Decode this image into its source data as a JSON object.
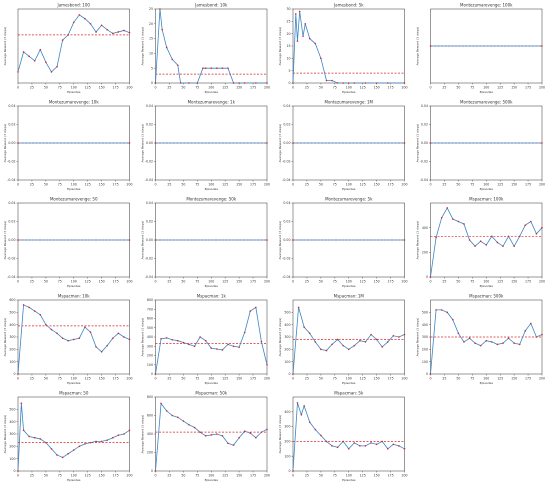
{
  "style": {
    "line_color": "#3a86c8",
    "mean_color": "#d62728",
    "marker_color": "#d62728",
    "axis_color": "#333333"
  },
  "chart_data": [
    {
      "type": "line",
      "title": "Jamesbond: 100",
      "xlabel": "Episodes",
      "ylabel": "Average Reward (3 steps)",
      "x_ticks": [
        0,
        25,
        50,
        75,
        100,
        125,
        150,
        175,
        200
      ],
      "y_ticks": [],
      "xlim": [
        0,
        200
      ],
      "ylim": [
        0,
        10
      ],
      "mean": 6.5,
      "series": [
        {
          "x": [
            0,
            10,
            20,
            30,
            40,
            50,
            60,
            70,
            80,
            90,
            100,
            110,
            120,
            130,
            140,
            150,
            160,
            170,
            180,
            190,
            200
          ],
          "values": [
            1.5,
            4.2,
            3.6,
            3.0,
            4.5,
            2.8,
            1.5,
            2.2,
            5.8,
            6.5,
            8.2,
            9.2,
            8.7,
            8.0,
            6.9,
            7.8,
            7.2,
            6.7,
            6.9,
            7.1,
            6.8
          ]
        }
      ]
    },
    {
      "type": "line",
      "title": "Jamesbond: 10k",
      "xlabel": "Episodes",
      "ylabel": "Average Reward (3 steps)",
      "x_ticks": [
        0,
        25,
        50,
        75,
        100,
        125,
        150,
        175,
        200
      ],
      "y_ticks": [
        0,
        5,
        10,
        15,
        20,
        25
      ],
      "xlim": [
        0,
        200
      ],
      "ylim": [
        0,
        25
      ],
      "mean": 3.0,
      "series": [
        {
          "x": [
            0,
            8,
            12,
            20,
            30,
            40,
            45,
            60,
            75,
            85,
            90,
            100,
            110,
            120,
            130,
            140,
            150,
            160,
            180,
            200
          ],
          "values": [
            0,
            25,
            18,
            12,
            8,
            6,
            0,
            0,
            0,
            5,
            5,
            5,
            5,
            5,
            5,
            0,
            0,
            0,
            0,
            0
          ]
        }
      ]
    },
    {
      "type": "line",
      "title": "Jamesbond: 5k",
      "xlabel": "Episodes",
      "ylabel": "Average Reward (3 steps)",
      "x_ticks": [
        0,
        25,
        50,
        75,
        100,
        125,
        150,
        175,
        200
      ],
      "y_ticks": [
        0,
        5,
        10,
        15,
        20,
        25,
        30
      ],
      "xlim": [
        0,
        200
      ],
      "ylim": [
        0,
        30
      ],
      "mean": 4.0,
      "series": [
        {
          "x": [
            0,
            5,
            8,
            12,
            18,
            22,
            30,
            40,
            50,
            60,
            70,
            80,
            90,
            100,
            110,
            130,
            150,
            170,
            200
          ],
          "values": [
            0,
            28,
            17,
            29,
            19,
            24,
            18,
            16,
            10,
            1,
            1,
            0,
            0,
            0,
            0,
            0,
            0,
            0,
            0
          ]
        }
      ]
    },
    {
      "type": "line",
      "title": "Montezumarevenge: 100k",
      "xlabel": "Episodes",
      "ylabel": "Average Reward (3 steps)",
      "x_ticks": [
        0,
        25,
        50,
        75,
        100,
        125,
        150,
        175,
        200
      ],
      "y_ticks": [],
      "xlim": [
        0,
        200
      ],
      "ylim": [
        -0.04,
        0.04
      ],
      "mean": 0.0,
      "series": [
        {
          "x": [
            0,
            200
          ],
          "values": [
            0,
            0
          ]
        }
      ]
    },
    {
      "type": "line",
      "title": "Montezumarevenge: 10k",
      "xlabel": "Episodes",
      "ylabel": "Average Reward (3 steps)",
      "x_ticks": [
        0,
        25,
        50,
        75,
        100,
        125,
        150,
        175,
        200
      ],
      "y_ticks": [
        "-0.04",
        "-0.02",
        "0.00",
        "0.02",
        "0.04"
      ],
      "xlim": [
        0,
        200
      ],
      "ylim": [
        -0.04,
        0.04
      ],
      "mean": 0.0,
      "series": [
        {
          "x": [
            0,
            200
          ],
          "values": [
            0,
            0
          ]
        }
      ]
    },
    {
      "type": "line",
      "title": "Montezumarevenge: 1k",
      "xlabel": "Episodes",
      "ylabel": "Average Reward (3 steps)",
      "x_ticks": [
        0,
        25,
        50,
        75,
        100,
        125,
        150,
        175,
        200
      ],
      "y_ticks": [
        "-0.04",
        "-0.02",
        "0.00",
        "0.02",
        "0.04"
      ],
      "xlim": [
        0,
        200
      ],
      "ylim": [
        -0.04,
        0.04
      ],
      "mean": 0.0,
      "series": [
        {
          "x": [
            0,
            200
          ],
          "values": [
            0,
            0
          ]
        }
      ]
    },
    {
      "type": "line",
      "title": "Montezumarevenge: 1M",
      "xlabel": "Episodes",
      "ylabel": "Average Reward (3 steps)",
      "x_ticks": [
        0,
        25,
        50,
        75,
        100,
        125,
        150,
        175,
        200
      ],
      "y_ticks": [
        "-0.04",
        "-0.02",
        "0.00",
        "0.02",
        "0.04"
      ],
      "xlim": [
        0,
        200
      ],
      "ylim": [
        -0.04,
        0.04
      ],
      "mean": 0.0,
      "series": [
        {
          "x": [
            0,
            200
          ],
          "values": [
            0,
            0
          ]
        }
      ]
    },
    {
      "type": "line",
      "title": "Montezumarevenge: 500k",
      "xlabel": "Episodes",
      "ylabel": "Average Reward (3 steps)",
      "x_ticks": [
        0,
        25,
        50,
        75,
        100,
        125,
        150,
        175,
        200
      ],
      "y_ticks": [
        "-0.04",
        "-0.02",
        "0.00",
        "0.02",
        "0.04"
      ],
      "xlim": [
        0,
        200
      ],
      "ylim": [
        -0.04,
        0.04
      ],
      "mean": 0.0,
      "series": [
        {
          "x": [
            0,
            200
          ],
          "values": [
            0,
            0
          ]
        }
      ]
    },
    {
      "type": "line",
      "title": "Montezumarevenge: 50",
      "xlabel": "Episodes",
      "ylabel": "Average Reward (3 steps)",
      "x_ticks": [
        0,
        25,
        50,
        75,
        100,
        125,
        150,
        175,
        200
      ],
      "y_ticks": [
        "-0.04",
        "-0.02",
        "0.00",
        "0.02",
        "0.04"
      ],
      "xlim": [
        0,
        200
      ],
      "ylim": [
        -0.04,
        0.04
      ],
      "mean": 0.0,
      "series": [
        {
          "x": [
            0,
            200
          ],
          "values": [
            0,
            0
          ]
        }
      ]
    },
    {
      "type": "line",
      "title": "Montezumarevenge: 50k",
      "xlabel": "Episodes",
      "ylabel": "Average Reward (3 steps)",
      "x_ticks": [
        0,
        25,
        50,
        75,
        100,
        125,
        150,
        175,
        200
      ],
      "y_ticks": [
        "-0.04",
        "-0.02",
        "0.00",
        "0.02",
        "0.04"
      ],
      "xlim": [
        0,
        200
      ],
      "ylim": [
        -0.04,
        0.04
      ],
      "mean": 0.0,
      "series": [
        {
          "x": [
            0,
            200
          ],
          "values": [
            0,
            0
          ]
        }
      ]
    },
    {
      "type": "line",
      "title": "Montezumarevenge: 5k",
      "xlabel": "Episodes",
      "ylabel": "Average Reward (3 steps)",
      "x_ticks": [
        0,
        25,
        50,
        75,
        100,
        125,
        150,
        175,
        200
      ],
      "y_ticks": [
        "-0.04",
        "-0.02",
        "0.00",
        "0.02",
        "0.04"
      ],
      "xlim": [
        0,
        200
      ],
      "ylim": [
        -0.04,
        0.04
      ],
      "mean": 0.0,
      "series": [
        {
          "x": [
            0,
            200
          ],
          "values": [
            0,
            0
          ]
        }
      ]
    },
    {
      "type": "line",
      "title": "Mspacman: 100k",
      "xlabel": "Episodes",
      "ylabel": "Average Reward (3 steps)",
      "x_ticks": [
        0,
        25,
        50,
        75,
        100,
        125,
        150,
        175,
        200
      ],
      "y_ticks": [
        0,
        200,
        400
      ],
      "xlim": [
        0,
        200
      ],
      "ylim": [
        0,
        600
      ],
      "mean": 330,
      "series": [
        {
          "x": [
            0,
            10,
            20,
            30,
            40,
            50,
            60,
            70,
            80,
            90,
            100,
            110,
            120,
            130,
            140,
            150,
            160,
            170,
            180,
            190,
            200
          ],
          "values": [
            0,
            320,
            480,
            560,
            470,
            450,
            430,
            300,
            250,
            290,
            260,
            330,
            280,
            250,
            330,
            250,
            330,
            420,
            450,
            350,
            400
          ]
        }
      ]
    },
    {
      "type": "line",
      "title": "Mspacman: 10k",
      "xlabel": "Episodes",
      "ylabel": "Average Reward (3 steps)",
      "x_ticks": [
        0,
        25,
        50,
        75,
        100,
        125,
        150,
        175,
        200
      ],
      "y_ticks": [
        0,
        100,
        200,
        300,
        400,
        500,
        600
      ],
      "xlim": [
        0,
        200
      ],
      "ylim": [
        0,
        600
      ],
      "mean": 390,
      "series": [
        {
          "x": [
            0,
            10,
            20,
            30,
            40,
            50,
            60,
            70,
            80,
            90,
            100,
            110,
            120,
            130,
            140,
            150,
            160,
            170,
            180,
            190,
            200
          ],
          "values": [
            0,
            560,
            540,
            510,
            480,
            400,
            360,
            330,
            290,
            270,
            280,
            290,
            380,
            340,
            220,
            180,
            230,
            290,
            330,
            300,
            280
          ]
        }
      ]
    },
    {
      "type": "line",
      "title": "Mspacman: 1k",
      "xlabel": "Episodes",
      "ylabel": "Average Reward (3 steps)",
      "x_ticks": [
        0,
        25,
        50,
        75,
        100,
        125,
        150,
        175,
        200
      ],
      "y_ticks": [
        0,
        100,
        200,
        300,
        400,
        500,
        600,
        700,
        800
      ],
      "xlim": [
        0,
        200
      ],
      "ylim": [
        0,
        800
      ],
      "mean": 330,
      "series": [
        {
          "x": [
            0,
            10,
            20,
            30,
            40,
            50,
            60,
            70,
            80,
            90,
            100,
            110,
            120,
            130,
            140,
            150,
            160,
            170,
            180,
            190,
            200
          ],
          "values": [
            0,
            380,
            390,
            370,
            360,
            340,
            320,
            300,
            400,
            360,
            280,
            270,
            260,
            320,
            300,
            290,
            450,
            680,
            720,
            350,
            100
          ]
        }
      ]
    },
    {
      "type": "line",
      "title": "Mspacman: 1M",
      "xlabel": "Episodes",
      "ylabel": "Average Reward (3 steps)",
      "x_ticks": [
        0,
        25,
        50,
        75,
        100,
        125,
        150,
        175,
        200
      ],
      "y_ticks": [
        0,
        100,
        200,
        300,
        400,
        500
      ],
      "xlim": [
        0,
        200
      ],
      "ylim": [
        0,
        600
      ],
      "mean": 280,
      "series": [
        {
          "x": [
            0,
            10,
            20,
            30,
            40,
            50,
            60,
            70,
            80,
            90,
            100,
            110,
            120,
            130,
            140,
            150,
            160,
            170,
            180,
            190,
            200
          ],
          "values": [
            0,
            540,
            380,
            330,
            260,
            200,
            190,
            240,
            280,
            230,
            200,
            230,
            270,
            260,
            320,
            280,
            220,
            260,
            310,
            300,
            320
          ]
        }
      ]
    },
    {
      "type": "line",
      "title": "Mspacman: 500k",
      "xlabel": "Episodes",
      "ylabel": "Average Reward (3 steps)",
      "x_ticks": [
        0,
        25,
        50,
        75,
        100,
        125,
        150,
        175,
        200
      ],
      "y_ticks": [
        0,
        100,
        200,
        300,
        400,
        500
      ],
      "xlim": [
        0,
        200
      ],
      "ylim": [
        0,
        600
      ],
      "mean": 300,
      "series": [
        {
          "x": [
            0,
            10,
            20,
            30,
            40,
            50,
            60,
            70,
            80,
            90,
            100,
            110,
            120,
            130,
            140,
            150,
            160,
            170,
            180,
            190,
            200
          ],
          "values": [
            0,
            520,
            520,
            500,
            440,
            330,
            260,
            290,
            250,
            230,
            270,
            260,
            240,
            250,
            290,
            250,
            240,
            350,
            410,
            300,
            320
          ]
        }
      ]
    },
    {
      "type": "line",
      "title": "Mspacman: 50",
      "xlabel": "Episodes",
      "ylabel": "Average Reward (3 steps)",
      "x_ticks": [
        0,
        25,
        50,
        75,
        100,
        125,
        150,
        175,
        200
      ],
      "y_ticks": [
        0,
        100,
        200,
        300,
        400,
        500
      ],
      "xlim": [
        0,
        200
      ],
      "ylim": [
        0,
        600
      ],
      "mean": 230,
      "series": [
        {
          "x": [
            0,
            6,
            10,
            20,
            30,
            40,
            50,
            60,
            70,
            80,
            90,
            100,
            110,
            120,
            130,
            140,
            150,
            160,
            170,
            180,
            190,
            200
          ],
          "values": [
            0,
            550,
            330,
            280,
            270,
            260,
            230,
            180,
            130,
            110,
            140,
            170,
            200,
            220,
            230,
            240,
            240,
            250,
            270,
            290,
            300,
            330
          ]
        }
      ]
    },
    {
      "type": "line",
      "title": "Mspacman: 50k",
      "xlabel": "Episodes",
      "ylabel": "Average Reward (3 steps)",
      "x_ticks": [
        0,
        25,
        50,
        75,
        100,
        125,
        150,
        175,
        200
      ],
      "y_ticks": [
        0,
        200,
        400,
        600,
        800
      ],
      "xlim": [
        0,
        200
      ],
      "ylim": [
        0,
        800
      ],
      "mean": 420,
      "series": [
        {
          "x": [
            0,
            10,
            20,
            30,
            40,
            50,
            60,
            70,
            80,
            90,
            100,
            110,
            120,
            130,
            140,
            150,
            160,
            170,
            180,
            190,
            200
          ],
          "values": [
            0,
            730,
            650,
            600,
            580,
            540,
            500,
            470,
            420,
            380,
            390,
            400,
            380,
            300,
            280,
            360,
            430,
            410,
            360,
            420,
            450
          ]
        }
      ]
    },
    {
      "type": "line",
      "title": "Mspacman: 5k",
      "xlabel": "Episodes",
      "ylabel": "Average Reward (3 steps)",
      "x_ticks": [
        0,
        25,
        50,
        75,
        100,
        125,
        150,
        175,
        200
      ],
      "y_ticks": [
        0,
        100,
        200,
        300,
        400
      ],
      "xlim": [
        0,
        200
      ],
      "ylim": [
        0,
        500
      ],
      "mean": 200,
      "series": [
        {
          "x": [
            0,
            8,
            15,
            20,
            30,
            40,
            50,
            60,
            70,
            80,
            90,
            100,
            110,
            120,
            130,
            140,
            150,
            160,
            170,
            180,
            190,
            200
          ],
          "values": [
            0,
            460,
            380,
            440,
            330,
            280,
            240,
            200,
            170,
            160,
            200,
            150,
            190,
            170,
            170,
            190,
            180,
            200,
            150,
            180,
            170,
            150
          ]
        }
      ]
    }
  ]
}
